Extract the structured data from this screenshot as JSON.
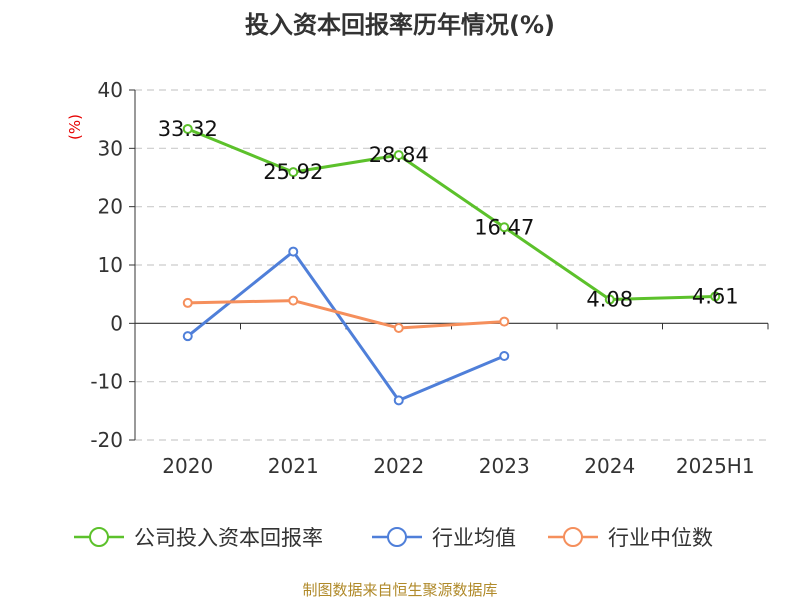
{
  "chart_data": {
    "type": "line",
    "title": "投入资本回报率历年情况(%)",
    "ylabel": "(%)",
    "categories": [
      "2020",
      "2021",
      "2022",
      "2023",
      "2024",
      "2025H1"
    ],
    "ylim": [
      -20,
      40
    ],
    "yticks": [
      40,
      30,
      20,
      10,
      0,
      -10,
      -20
    ],
    "grid": true,
    "legend_position": "bottom",
    "series": [
      {
        "name": "公司投入资本回报率",
        "color": "#5cc12b",
        "values": [
          33.32,
          25.92,
          28.84,
          16.47,
          4.08,
          4.61
        ],
        "labels": [
          "33.32",
          "25.92",
          "28.84",
          "16.47",
          "4.08",
          "4.61"
        ]
      },
      {
        "name": "行业均值",
        "color": "#4f7fd9",
        "values": [
          -2.2,
          12.3,
          -13.2,
          -5.6,
          null,
          null
        ]
      },
      {
        "name": "行业中位数",
        "color": "#f58f5c",
        "values": [
          3.5,
          3.9,
          -0.8,
          0.3,
          null,
          null
        ]
      }
    ]
  },
  "source": "制图数据来自恒生聚源数据库"
}
